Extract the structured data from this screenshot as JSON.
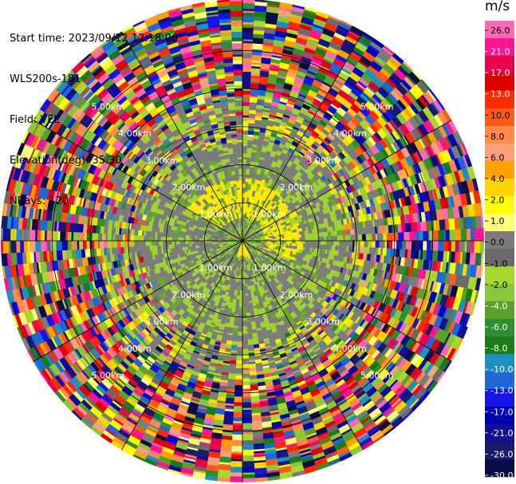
{
  "info": {
    "start_time": "Start time: 2023/09/12 12:18:06",
    "instrument": "WLS200s-181",
    "field": "Field: VEL",
    "elevation": "Elevation(deg): 35.30",
    "nrays": "NRays: 120"
  },
  "chart_data": {
    "type": "heatmap",
    "projection": "polar PPI",
    "field": "VEL",
    "units": "m/s",
    "range_rings_km": [
      1,
      2,
      3,
      4,
      5
    ],
    "range_ring_labels": [
      "1.00km",
      "2.00km",
      "3.00km",
      "4.00km",
      "5.00km"
    ],
    "max_range_km": 6.35,
    "nrays": 120,
    "colorbar": {
      "title": "m/s",
      "tick_labels": [
        "26.0",
        "21.0",
        "17.0",
        "13.0",
        "10.0",
        "8.0",
        "6.0",
        "4.0",
        "2.0",
        "1.0",
        "0.0",
        "-1.0",
        "-2.0",
        "-4.0",
        "-6.0",
        "-8.0",
        "-10.0",
        "-13.0",
        "-17.0",
        "-21.0",
        "-26.0",
        "-30.0"
      ],
      "colors": [
        "#ff69b4",
        "#ff1493",
        "#e8004a",
        "#e00000",
        "#ff2a00",
        "#ff5a1a",
        "#ff8a4a",
        "#ffa07a",
        "#ff9f00",
        "#ffd500",
        "#fffb00",
        "#ffff7a",
        "#7c7c7c",
        "#6a6a6a",
        "#a8d830",
        "#8cc63e",
        "#5aa02c",
        "#2f8f2f",
        "#1a7a1a",
        "#1e8fbf",
        "#1f66d6",
        "#1414e6",
        "#0000b0",
        "#101090",
        "#1a1a6a",
        "#0b0b45"
      ]
    }
  }
}
